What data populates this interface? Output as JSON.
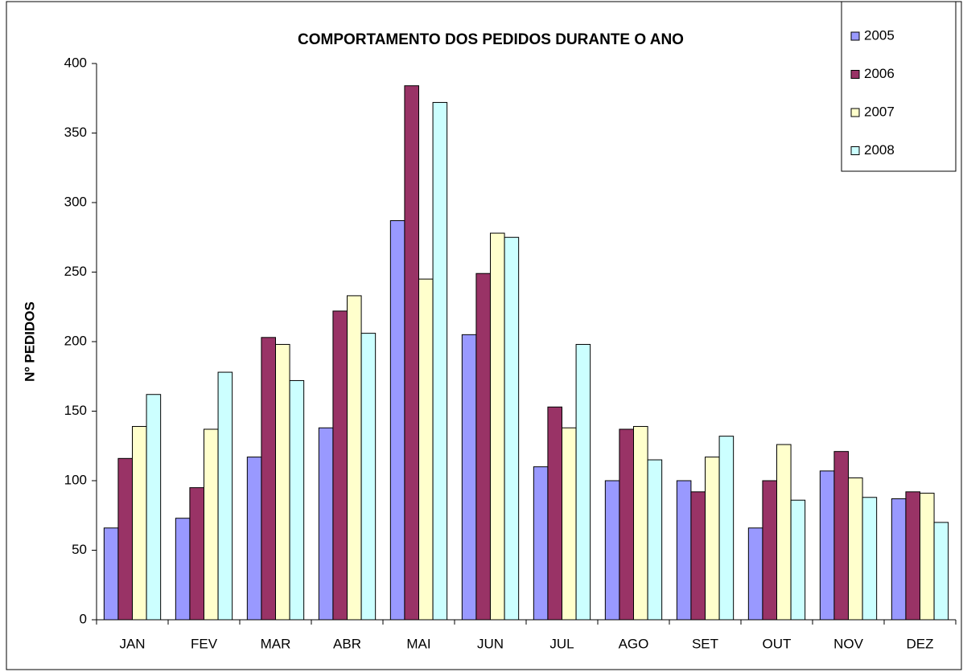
{
  "chart_data": {
    "type": "bar",
    "title": "COMPORTAMENTO DOS PEDIDOS DURANTE O ANO",
    "y_label": "Nº PEDIDOS",
    "categories": [
      "JAN",
      "FEV",
      "MAR",
      "ABR",
      "MAI",
      "JUN",
      "JUL",
      "AGO",
      "SET",
      "OUT",
      "NOV",
      "DEZ"
    ],
    "series": [
      {
        "name": "2005",
        "color": "#9999ff",
        "values": [
          66,
          73,
          117,
          138,
          287,
          205,
          110,
          100,
          100,
          66,
          107,
          87
        ]
      },
      {
        "name": "2006",
        "color": "#993366",
        "values": [
          116,
          95,
          203,
          222,
          384,
          249,
          153,
          137,
          92,
          100,
          121,
          92
        ]
      },
      {
        "name": "2007",
        "color": "#ffffcc",
        "values": [
          139,
          137,
          198,
          233,
          245,
          278,
          138,
          139,
          117,
          126,
          102,
          91
        ]
      },
      {
        "name": "2008",
        "color": "#ccffff",
        "values": [
          162,
          178,
          172,
          206,
          372,
          275,
          198,
          115,
          132,
          86,
          88,
          70
        ]
      }
    ],
    "ylim": [
      0,
      400
    ],
    "yticks": [
      0,
      50,
      100,
      150,
      200,
      250,
      300,
      350,
      400
    ],
    "legend": "top-right"
  }
}
